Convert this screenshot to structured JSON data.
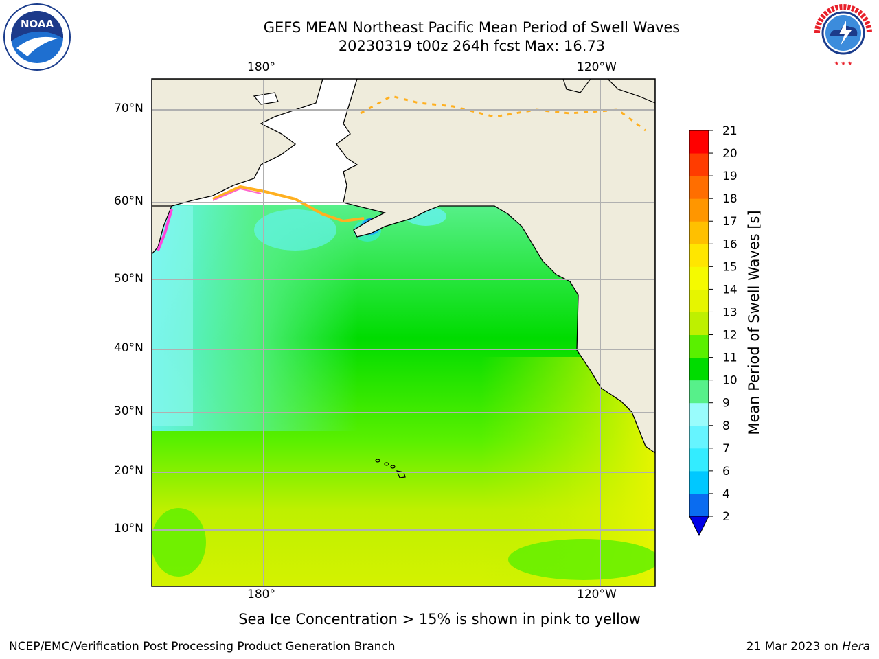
{
  "title_line1": "GEFS MEAN Northeast Pacific Mean Period of Swell Waves",
  "title_line2": "20230319 t00z 264h fcst   Max: 16.73",
  "map": {
    "lon_labels": [
      "180°",
      "120°W"
    ],
    "lat_labels": [
      "70°N",
      "60°N",
      "50°N",
      "40°N",
      "30°N",
      "20°N",
      "10°N"
    ],
    "land_color": "#efecdc",
    "grid_color": "#b0b0b0",
    "regions": {
      "hawaii": "Hawaii",
      "alaska": "Alaska"
    }
  },
  "colorbar": {
    "label": "Mean Period of Swell Waves [s]",
    "ticks": [
      "2",
      "4",
      "6",
      "7",
      "8",
      "9",
      "10",
      "11",
      "12",
      "13",
      "14",
      "15",
      "16",
      "17",
      "18",
      "19",
      "20",
      "21"
    ],
    "colors": [
      "#0a6cf0",
      "#00c8ff",
      "#33ecff",
      "#66f4ff",
      "#99fcfc",
      "#57f08a",
      "#00dc00",
      "#5af000",
      "#bef000",
      "#e6f500",
      "#f5fa00",
      "#ffe600",
      "#ffc000",
      "#ff9600",
      "#ff6e00",
      "#ff3c00",
      "#ff0000"
    ],
    "underflow_color": "#0000e6"
  },
  "caption": "Sea Ice Concentration > 15% is shown in pink to yellow",
  "footer_left": "NCEP/EMC/Verification Post Processing Product Generation Branch",
  "footer_right_date": "21 Mar 2023 on",
  "footer_right_host": "Hera",
  "logos": {
    "left": "NOAA",
    "right": "NATIONAL WEATHER SERVICE"
  }
}
